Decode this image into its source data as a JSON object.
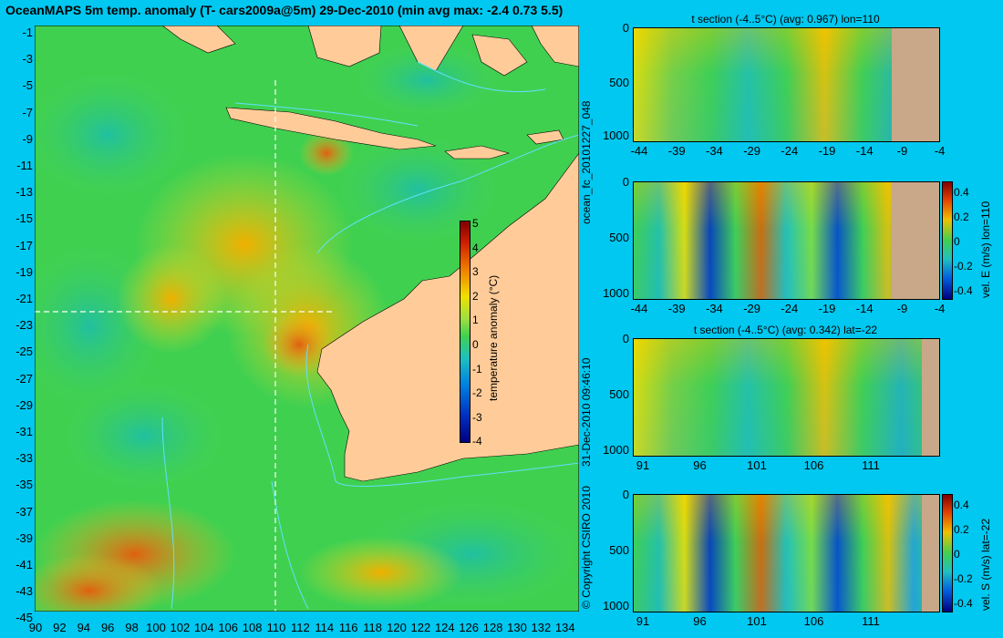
{
  "map": {
    "title": "OceanMAPS 5m temp. anomaly (T- cars2009a@5m) 29-Dec-2010 (min avg max: -2.4 0.73 5.5)",
    "lat_ticks": [
      "-1",
      "-3",
      "-5",
      "-7",
      "-9",
      "-11",
      "-13",
      "-15",
      "-17",
      "-19",
      "-21",
      "-23",
      "-25",
      "-27",
      "-29",
      "-31",
      "-33",
      "-35",
      "-37",
      "-39",
      "-41",
      "-43",
      "-45"
    ],
    "lon_ticks": [
      "90",
      "92",
      "94",
      "96",
      "98",
      "100",
      "102",
      "104",
      "106",
      "108",
      "110",
      "112",
      "114",
      "116",
      "118",
      "120",
      "122",
      "124",
      "126",
      "128",
      "130",
      "132",
      "134"
    ],
    "colorbar": {
      "label": "temperature anomaly (°C)",
      "ticks": [
        "5",
        "4",
        "3",
        "2",
        "1",
        "0",
        "-1",
        "-2",
        "-3",
        "-4"
      ]
    },
    "section_marker_lon": "110",
    "section_marker_lat": "-22"
  },
  "side_labels": {
    "run_id": "ocean_fc_20101227_048",
    "timestamp": "31-Dec-2010 09:46:10",
    "copyright": "© Copyright CSIRO 2010"
  },
  "sections": [
    {
      "title": "t section (-4..5°C) (avg: 0.967) lon=110",
      "y_ticks": [
        "0",
        "500",
        "1000"
      ],
      "x_ticks": [
        "-44",
        "-39",
        "-34",
        "-29",
        "-24",
        "-19",
        "-14",
        "-9",
        "-4"
      ],
      "colorbar": null
    },
    {
      "title": "",
      "y_ticks": [
        "0",
        "500",
        "1000"
      ],
      "x_ticks": [
        "-44",
        "-39",
        "-34",
        "-29",
        "-24",
        "-19",
        "-14",
        "-9",
        "-4"
      ],
      "colorbar": {
        "label": "vel. E (m/s) lon=110",
        "ticks": [
          "0.4",
          "0.2",
          "0",
          "-0.2",
          "-0.4"
        ]
      }
    },
    {
      "title": "t section (-4..5°C) (avg: 0.342) lat=-22",
      "y_ticks": [
        "0",
        "500",
        "1000"
      ],
      "x_ticks": [
        "91",
        "96",
        "101",
        "106",
        "111"
      ],
      "colorbar": null
    },
    {
      "title": "",
      "y_ticks": [
        "0",
        "500",
        "1000"
      ],
      "x_ticks": [
        "91",
        "96",
        "101",
        "106",
        "111"
      ],
      "colorbar": {
        "label": "vel. S (m/s) lat=-22",
        "ticks": [
          "0.4",
          "0.2",
          "0",
          "-0.2",
          "-0.4"
        ]
      }
    }
  ],
  "colors": {
    "background": "#00c8f0",
    "land": "#ffcc99",
    "section_land": "#c8a888"
  }
}
